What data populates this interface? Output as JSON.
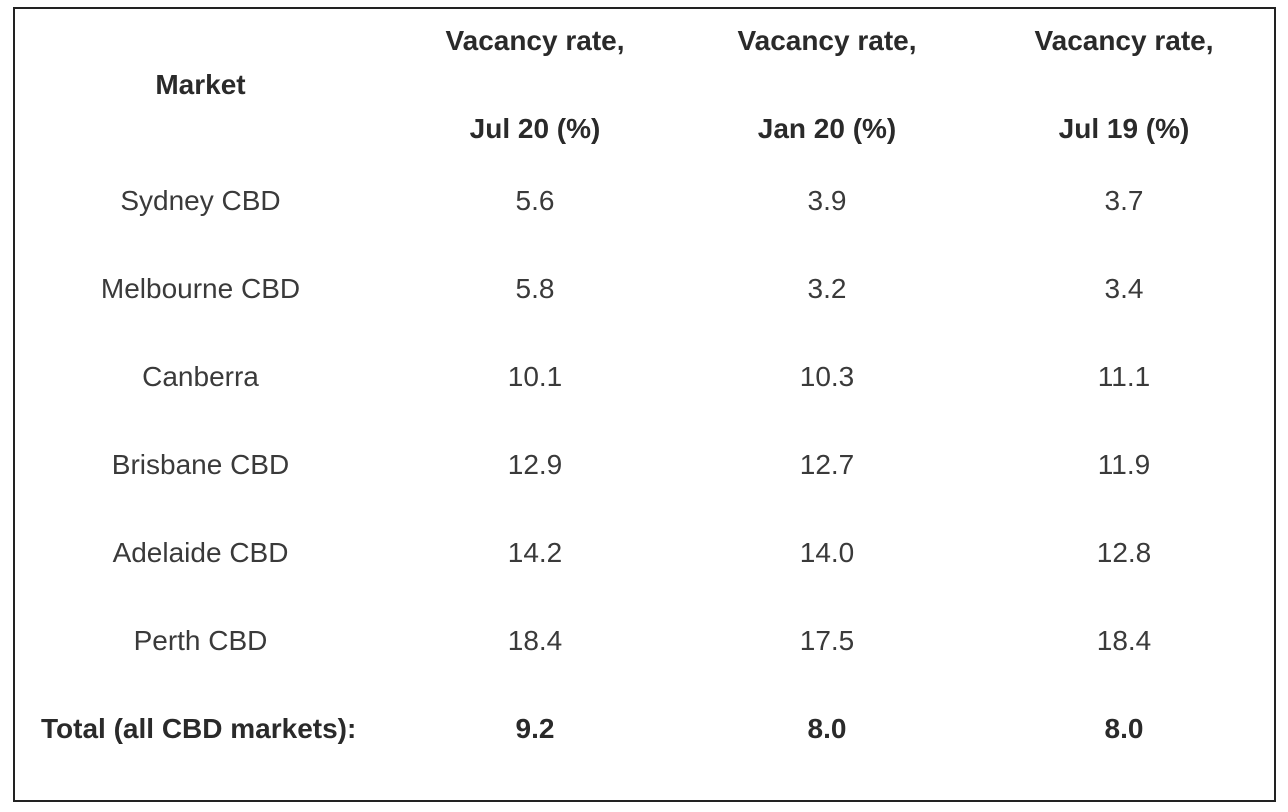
{
  "table": {
    "headers": [
      {
        "line1": "Market",
        "line2": ""
      },
      {
        "line1": "Vacancy rate,",
        "line2": "Jul 20 (%)"
      },
      {
        "line1": "Vacancy rate,",
        "line2": "Jan 20 (%)"
      },
      {
        "line1": "Vacancy rate,",
        "line2": "Jul 19 (%)"
      }
    ],
    "rows": [
      {
        "market": "Sydney CBD",
        "jul20": "5.6",
        "jan20": "3.9",
        "jul19": "3.7"
      },
      {
        "market": "Melbourne CBD",
        "jul20": "5.8",
        "jan20": "3.2",
        "jul19": "3.4"
      },
      {
        "market": "Canberra",
        "jul20": "10.1",
        "jan20": "10.3",
        "jul19": "11.1"
      },
      {
        "market": "Brisbane CBD",
        "jul20": "12.9",
        "jan20": "12.7",
        "jul19": "11.9"
      },
      {
        "market": "Adelaide CBD",
        "jul20": "14.2",
        "jan20": "14.0",
        "jul19": "12.8"
      },
      {
        "market": "Perth CBD",
        "jul20": "18.4",
        "jan20": "17.5",
        "jul19": "18.4"
      }
    ],
    "total": {
      "market": "Total (all CBD markets):",
      "jul20": "9.2",
      "jan20": "8.0",
      "jul19": "8.0"
    }
  },
  "colors": {
    "border": "#222222",
    "text": "#333333",
    "background": "#ffffff"
  }
}
